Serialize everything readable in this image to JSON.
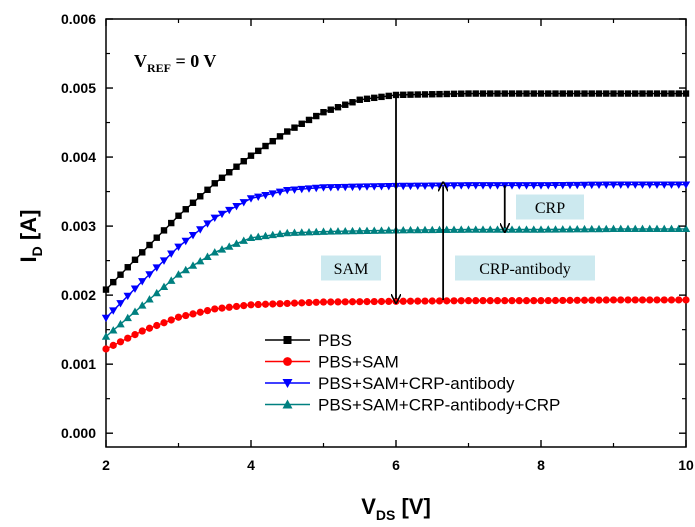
{
  "chart_data": {
    "type": "line",
    "xlabel": "V_DS [V]",
    "xlabel_main": "V",
    "xlabel_sub": "DS",
    "xlabel_unit": " [V]",
    "ylabel": "I_D [A]",
    "ylabel_main": "I",
    "ylabel_sub": "D",
    "ylabel_unit": " [A]",
    "xlim": [
      2,
      10
    ],
    "ylim": [
      -0.0002,
      0.006
    ],
    "xticks": [
      2,
      4,
      6,
      8,
      10
    ],
    "xtick_labels": [
      "2",
      "4",
      "6",
      "8",
      "10"
    ],
    "yticks": [
      0.0,
      0.001,
      0.002,
      0.003,
      0.004,
      0.005,
      0.006
    ],
    "ytick_labels": [
      "0.000",
      "0.001",
      "0.002",
      "0.003",
      "0.004",
      "0.005",
      "0.006"
    ],
    "grid": false,
    "legend_position": "bottom-center",
    "series": [
      {
        "name": "PBS",
        "color": "#000000",
        "marker": "square",
        "x": [
          2.0,
          2.5,
          3.0,
          3.5,
          4.0,
          4.5,
          5.0,
          5.5,
          6.0,
          7.0,
          8.0,
          9.0,
          10.0
        ],
        "y": [
          0.00208,
          0.00262,
          0.00315,
          0.00362,
          0.00402,
          0.00437,
          0.00465,
          0.00483,
          0.0049,
          0.00492,
          0.00492,
          0.00492,
          0.00492
        ]
      },
      {
        "name": "PBS+SAM",
        "color": "#ff0000",
        "marker": "circle",
        "x": [
          2.0,
          2.5,
          3.0,
          3.5,
          4.0,
          5.0,
          6.0,
          7.0,
          8.0,
          9.0,
          10.0
        ],
        "y": [
          0.00122,
          0.00148,
          0.00168,
          0.0018,
          0.00186,
          0.0019,
          0.00191,
          0.00192,
          0.00192,
          0.00193,
          0.00193
        ]
      },
      {
        "name": "PBS+SAM+CRP-antibody",
        "color": "#0000ff",
        "marker": "triangle-down",
        "x": [
          2.0,
          2.5,
          3.0,
          3.5,
          4.0,
          4.5,
          5.0,
          6.0,
          7.0,
          8.0,
          9.0,
          10.0
        ],
        "y": [
          0.00167,
          0.0022,
          0.0027,
          0.00312,
          0.0034,
          0.00352,
          0.00356,
          0.00358,
          0.00359,
          0.00359,
          0.0036,
          0.0036
        ]
      },
      {
        "name": "PBS+SAM+CRP-antibody+CRP",
        "color": "#008080",
        "marker": "triangle-up",
        "x": [
          2.0,
          2.5,
          3.0,
          3.5,
          4.0,
          4.5,
          5.0,
          6.0,
          7.0,
          8.0,
          9.0,
          10.0
        ],
        "y": [
          0.0014,
          0.00185,
          0.0023,
          0.00262,
          0.00283,
          0.0029,
          0.00292,
          0.00294,
          0.00295,
          0.00295,
          0.00296,
          0.00296
        ]
      }
    ],
    "vref_label_main": "V",
    "vref_label_sub": "REF",
    "vref_label_rest": " = 0 V",
    "annotations": [
      {
        "text": "SAM"
      },
      {
        "text": "CRP-antibody"
      },
      {
        "text": "CRP"
      }
    ],
    "arrows": [
      {
        "x": 6.0,
        "y_from": 0.00492,
        "y_to": 0.00193,
        "label": "SAM"
      },
      {
        "x": 6.65,
        "y_from": 0.00193,
        "y_to": 0.00359,
        "label": "CRP-antibody"
      },
      {
        "x": 7.5,
        "y_from": 0.00359,
        "y_to": 0.00296,
        "label": "CRP"
      }
    ],
    "annotation_box_color": "#cce9ef"
  }
}
